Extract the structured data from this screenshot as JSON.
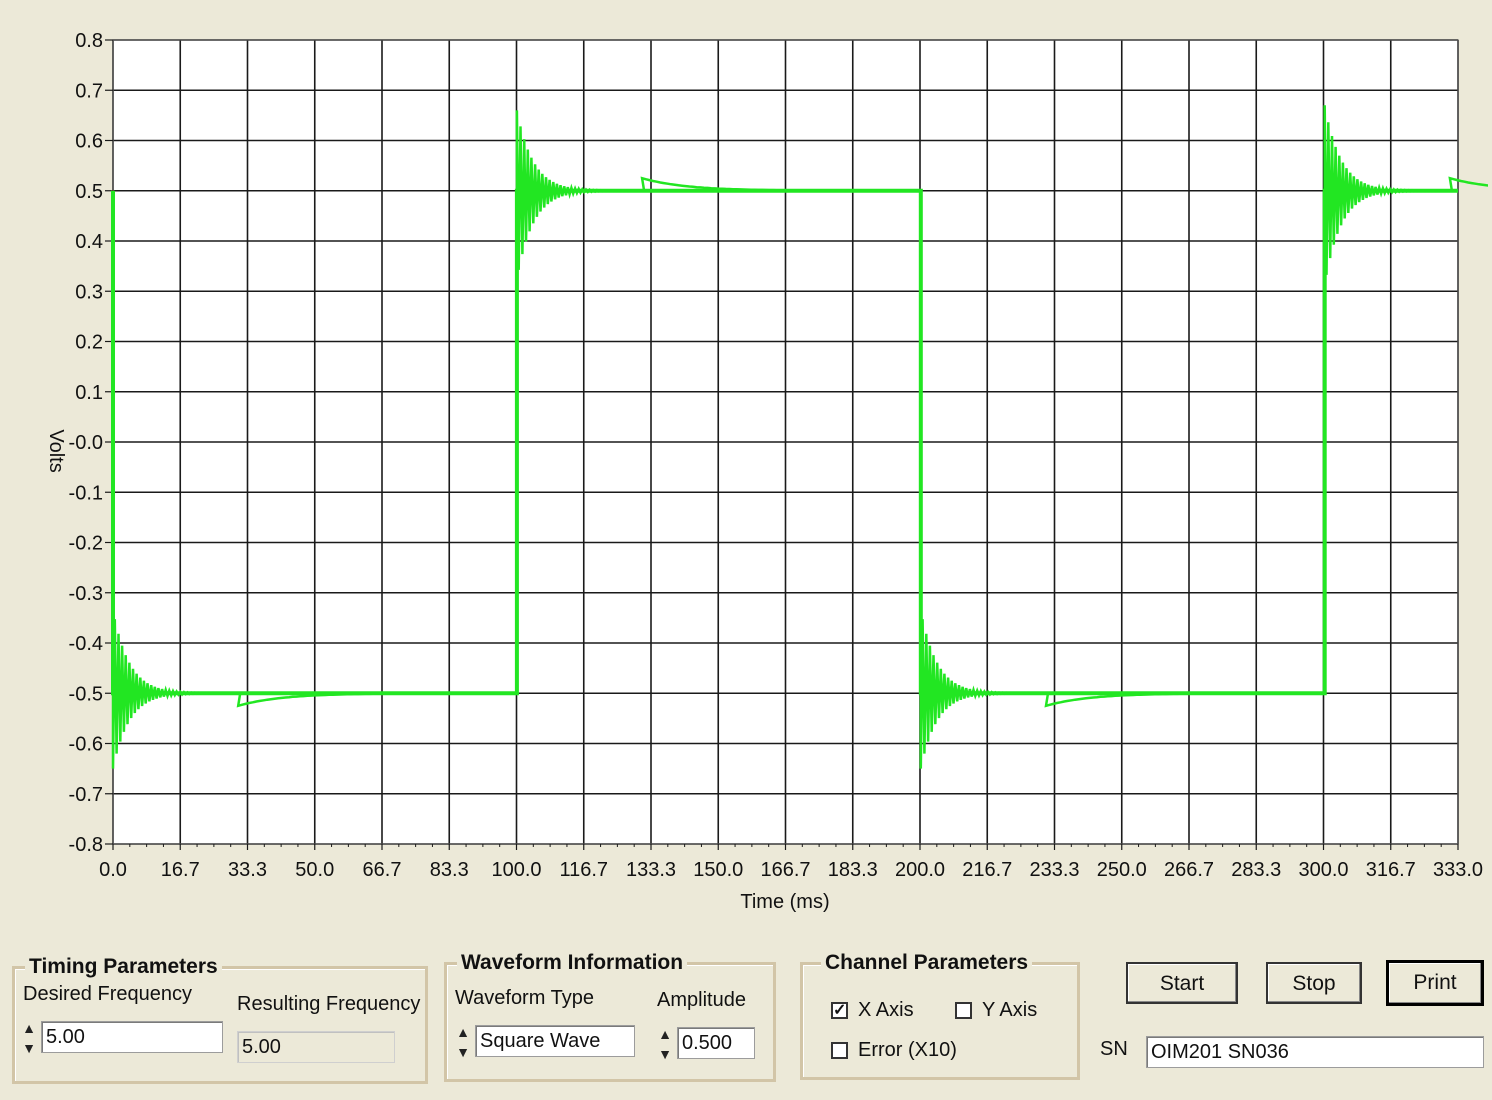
{
  "chart_data": {
    "type": "line",
    "xlabel": "Time (ms)",
    "ylabel": "Volts",
    "xlim": [
      0,
      333.0
    ],
    "ylim": [
      -0.8,
      0.8
    ],
    "x_ticks": [
      "0.0",
      "16.7",
      "33.3",
      "50.0",
      "66.7",
      "83.3",
      "100.0",
      "116.7",
      "133.3",
      "150.0",
      "166.7",
      "183.3",
      "200.0",
      "216.7",
      "233.3",
      "250.0",
      "266.7",
      "283.3",
      "300.0",
      "316.7",
      "333.0"
    ],
    "y_ticks": [
      {
        "value": 0.8,
        "label": "0.8"
      },
      {
        "value": 0.7,
        "label": "0.7"
      },
      {
        "value": 0.6,
        "label": "0.6"
      },
      {
        "value": 0.5,
        "label": "0.5"
      },
      {
        "value": 0.4,
        "label": "0.4"
      },
      {
        "value": 0.3,
        "label": "0.3"
      },
      {
        "value": 0.2,
        "label": "0.2"
      },
      {
        "value": 0.1,
        "label": "0.1"
      },
      {
        "value": 0.0,
        "label": "-0.0"
      },
      {
        "value": -0.1,
        "label": "-0.1"
      },
      {
        "value": -0.2,
        "label": "-0.2"
      },
      {
        "value": -0.3,
        "label": "-0.3"
      },
      {
        "value": -0.4,
        "label": "-0.4"
      },
      {
        "value": -0.5,
        "label": "-0.5"
      },
      {
        "value": -0.6,
        "label": "-0.6"
      },
      {
        "value": -0.7,
        "label": "-0.7"
      },
      {
        "value": -0.8,
        "label": "-0.8"
      }
    ],
    "grid": true,
    "series": [
      {
        "color": "#e01010",
        "x": [
          0,
          0,
          100,
          100,
          200,
          200,
          300,
          300,
          333
        ],
        "y": [
          0.5,
          -0.5,
          -0.5,
          0.5,
          0.5,
          -0.5,
          -0.5,
          0.5,
          0.5
        ]
      },
      {
        "color": "#22e622",
        "x": [
          0,
          0,
          100,
          100,
          200,
          200,
          300,
          300,
          333
        ],
        "y": [
          0.5,
          -0.5,
          -0.5,
          0.5,
          0.5,
          -0.5,
          -0.5,
          0.5,
          0.5
        ],
        "overshoot": [
          {
            "x": 0,
            "y": -0.65
          },
          {
            "x": 100,
            "y": 0.66
          },
          {
            "x": 200,
            "y": -0.65
          },
          {
            "x": 300,
            "y": 0.67
          }
        ]
      }
    ]
  },
  "timing": {
    "title": "Timing Parameters",
    "desired_label": "Desired Frequency",
    "desired_value": "5.00",
    "resulting_label": "Resulting Frequency",
    "resulting_value": "5.00"
  },
  "waveform": {
    "title": "Waveform Information",
    "type_label": "Waveform Type",
    "type_value": "Square Wave",
    "amp_label": "Amplitude",
    "amp_value": "0.500"
  },
  "channel": {
    "title": "Channel Parameters",
    "x_axis": "X Axis",
    "y_axis": "Y Axis",
    "error": "Error (X10)",
    "x_checked": "✓"
  },
  "buttons": {
    "start": "Start",
    "stop": "Stop",
    "print": "Print"
  },
  "sn": {
    "label": "SN",
    "value": "OIM201 SN036"
  }
}
